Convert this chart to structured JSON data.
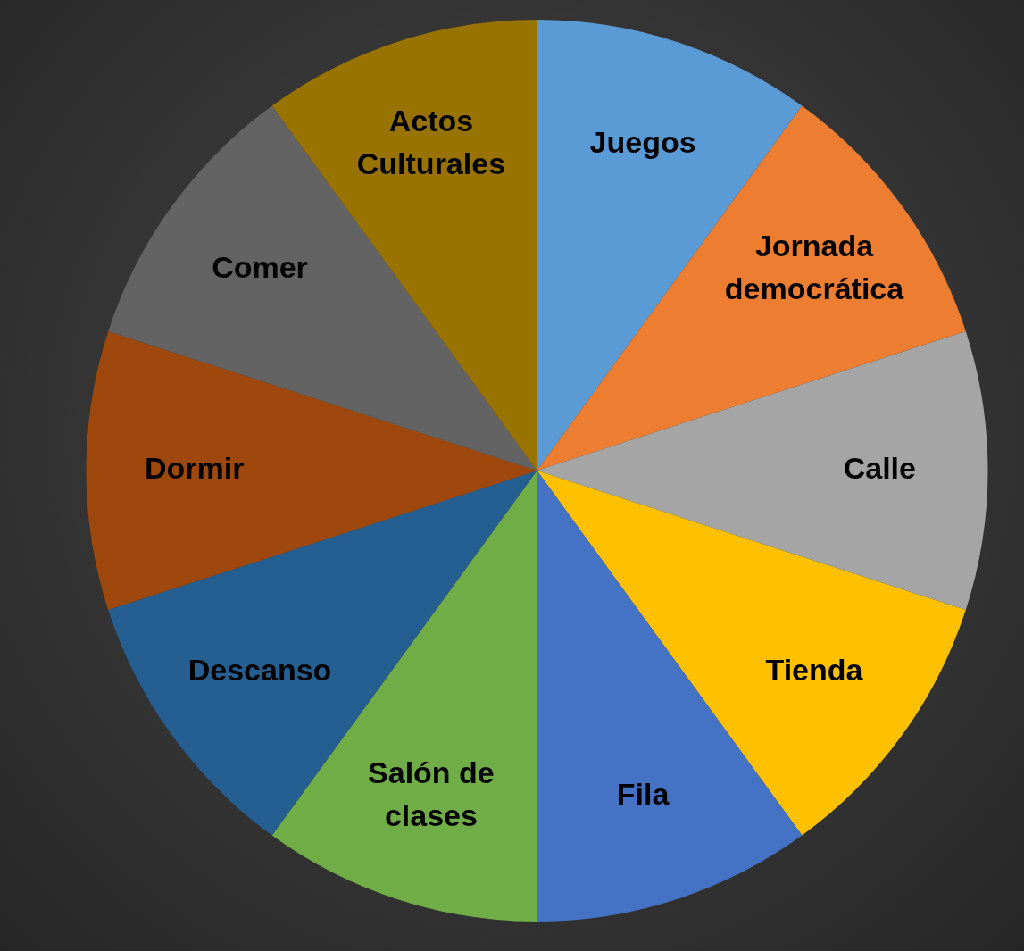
{
  "chart_data": {
    "type": "pie",
    "categories": [
      "Juegos",
      "Jornada democrática",
      "Calle",
      "Tienda",
      "Fila",
      "Salón de clases",
      "Descanso",
      "Dormir",
      "Comer",
      "Actos Culturales"
    ],
    "values": [
      10,
      10,
      10,
      10,
      10,
      10,
      10,
      10,
      10,
      10
    ],
    "colors": [
      "#5b9bd5",
      "#ed7d31",
      "#a5a5a5",
      "#ffc000",
      "#4472c4",
      "#70ad47",
      "#255e91",
      "#9e480e",
      "#636363",
      "#997300"
    ],
    "legend": false
  }
}
